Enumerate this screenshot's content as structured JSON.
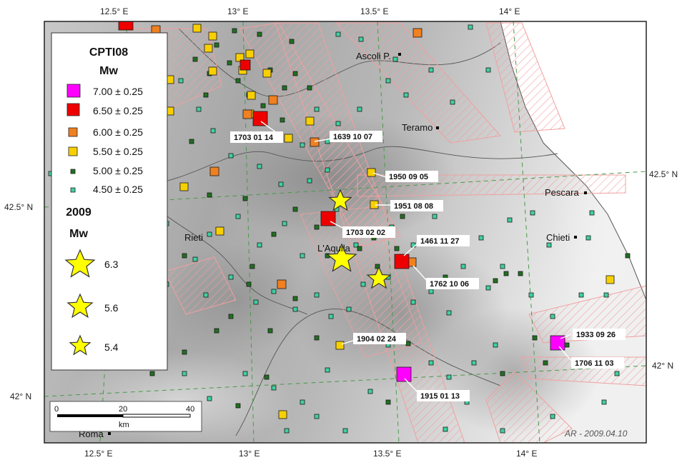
{
  "axes": {
    "top_ticks": [
      "12.5° E",
      "13° E",
      "13.5° E",
      "14° E"
    ],
    "bottom_ticks": [
      "12.5° E",
      "13° E",
      "13.5° E",
      "14° E"
    ],
    "left_ticks": [
      "42.5° N",
      "42° N"
    ],
    "right_ticks": [
      "42.5° N",
      "42° N"
    ]
  },
  "places": [
    {
      "name": "Ascoli P."
    },
    {
      "name": "Teramo"
    },
    {
      "name": "Pescara"
    },
    {
      "name": "Chieti"
    },
    {
      "name": "Rieti"
    },
    {
      "name": "L'Aquila"
    },
    {
      "name": "Roma"
    }
  ],
  "legend": {
    "catalog_title": "CPTI08",
    "catalog_mw_title": "Mw",
    "entries": [
      {
        "label": "7.00 ± 0.25",
        "color": "#ff00ff"
      },
      {
        "label": "6.50 ± 0.25",
        "color": "#ee0000"
      },
      {
        "label": "6.00 ± 0.25",
        "color": "#f08020"
      },
      {
        "label": "5.50 ± 0.25",
        "color": "#f8d000"
      },
      {
        "label": "5.00 ± 0.25",
        "color": "#207020"
      },
      {
        "label": "4.50 ± 0.25",
        "color": "#40d0a0"
      }
    ],
    "year_title": "2009",
    "year_mw_title": "Mw",
    "stars": [
      {
        "label": "6.3"
      },
      {
        "label": "5.6"
      },
      {
        "label": "5.4"
      }
    ]
  },
  "event_labels": [
    "1703 01 14",
    "1639 10 07",
    "1950 09 05",
    "1951 08 08",
    "1703 02 02",
    "1461 11 27",
    "1762 10 06",
    "1904 02 24",
    "1915 01 13",
    "1933 09 26",
    "1706 11 03"
  ],
  "scale_bar": {
    "ticks": [
      "0",
      "20",
      "40"
    ],
    "unit": "km"
  },
  "credit": "AR - 2009.04.10",
  "colors": {
    "hatch": "#f0a0a0",
    "grid": "#4a9a4a",
    "star": "#ffff00"
  }
}
